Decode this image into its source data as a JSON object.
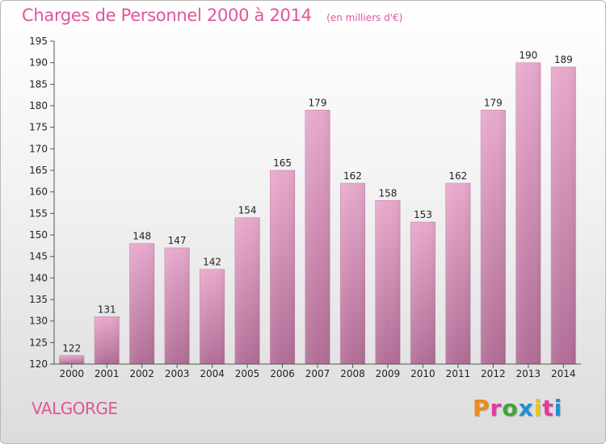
{
  "chart_data": {
    "type": "bar",
    "title": "Charges de Personnel 2000 à 2014",
    "unit": "(en milliers d'€)",
    "categories": [
      "2000",
      "2001",
      "2002",
      "2003",
      "2004",
      "2005",
      "2006",
      "2007",
      "2008",
      "2009",
      "2010",
      "2011",
      "2012",
      "2013",
      "2014"
    ],
    "values": [
      122,
      131,
      148,
      147,
      142,
      154,
      165,
      179,
      162,
      158,
      153,
      162,
      179,
      190,
      189
    ],
    "ylim": [
      120,
      195
    ],
    "yticks": [
      120,
      125,
      130,
      135,
      140,
      145,
      150,
      155,
      160,
      165,
      170,
      175,
      180,
      185,
      190,
      195
    ],
    "grid": false,
    "bar_color": "#d98fb8",
    "title_color": "#e0559a"
  },
  "footer": {
    "commune": "VALGORGE",
    "brand": "Proxiti",
    "brand_letter_colors": [
      "#f08a1c",
      "#e8389a",
      "#3fa535",
      "#1f8fd8",
      "#f0c419",
      "#e8389a",
      "#1f8fd8"
    ]
  }
}
